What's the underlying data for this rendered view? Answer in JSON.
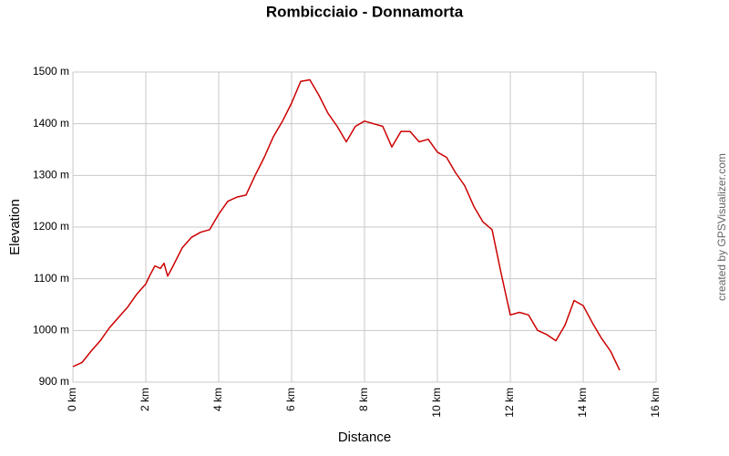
{
  "chart_data": {
    "type": "line",
    "title": "Rombicciaio - Donnamorta",
    "x_label": "Distance",
    "y_label": "Elevation",
    "annotation": "created by GPSVisualizer.com",
    "x": [
      0,
      0.25,
      0.5,
      0.75,
      1,
      1.25,
      1.5,
      1.75,
      2,
      2.1,
      2.25,
      2.4,
      2.5,
      2.6,
      2.75,
      3,
      3.25,
      3.5,
      3.75,
      4,
      4.25,
      4.5,
      4.75,
      5,
      5.25,
      5.5,
      5.75,
      6,
      6.25,
      6.5,
      6.75,
      7,
      7.25,
      7.5,
      7.75,
      8,
      8.25,
      8.5,
      8.75,
      9,
      9.25,
      9.5,
      9.75,
      10,
      10.25,
      10.5,
      10.75,
      11,
      11.25,
      11.5,
      11.75,
      12,
      12.25,
      12.5,
      12.75,
      13,
      13.25,
      13.5,
      13.75,
      14,
      14.25,
      14.5,
      14.75,
      15
    ],
    "values": [
      930,
      938,
      960,
      980,
      1005,
      1025,
      1045,
      1070,
      1090,
      1105,
      1125,
      1120,
      1130,
      1105,
      1125,
      1160,
      1180,
      1190,
      1195,
      1225,
      1250,
      1258,
      1262,
      1300,
      1335,
      1375,
      1405,
      1440,
      1482,
      1485,
      1455,
      1420,
      1395,
      1365,
      1395,
      1405,
      1400,
      1395,
      1355,
      1385,
      1385,
      1365,
      1370,
      1345,
      1335,
      1305,
      1280,
      1240,
      1210,
      1195,
      1110,
      1030,
      1035,
      1030,
      1000,
      992,
      980,
      1010,
      1058,
      1048,
      1015,
      985,
      960,
      923
    ],
    "color": "#cc0000",
    "xlim": [
      0,
      16
    ],
    "xticks": [
      {
        "value": 0,
        "label": "0 km"
      },
      {
        "value": 2,
        "label": "2 km"
      },
      {
        "value": 4,
        "label": "4 km"
      },
      {
        "value": 6,
        "label": "6 km"
      },
      {
        "value": 8,
        "label": "8 km"
      },
      {
        "value": 10,
        "label": "10 km"
      },
      {
        "value": 12,
        "label": "12 km"
      },
      {
        "value": 14,
        "label": "14 km"
      },
      {
        "value": 16,
        "label": "16 km"
      }
    ],
    "ylim": [
      900,
      1500
    ],
    "yticks": [
      {
        "value": 900,
        "label": "900 m"
      },
      {
        "value": 1000,
        "label": "1000 m"
      },
      {
        "value": 1100,
        "label": "1100 m"
      },
      {
        "value": 1200,
        "label": "1200 m"
      },
      {
        "value": 1300,
        "label": "1300 m"
      },
      {
        "value": 1400,
        "label": "1400 m"
      },
      {
        "value": 1500,
        "label": "1500 m"
      }
    ],
    "grid": true
  }
}
